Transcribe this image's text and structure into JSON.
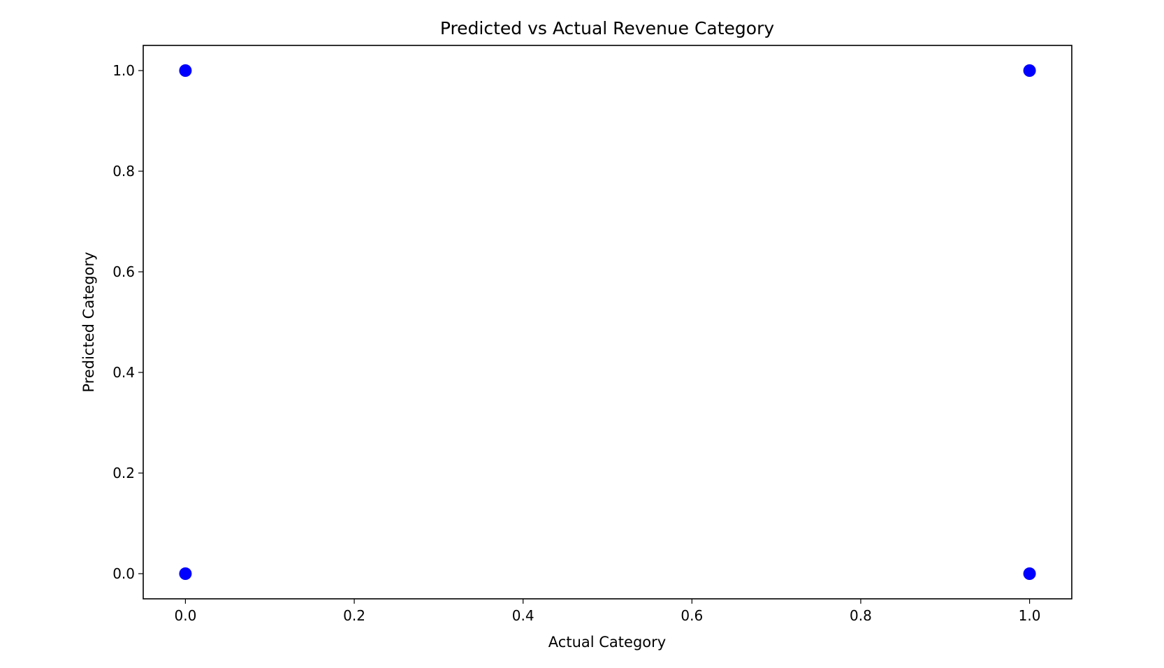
{
  "chart_data": {
    "type": "scatter",
    "title": "Predicted vs Actual Revenue Category",
    "xlabel": "Actual Category",
    "ylabel": "Predicted Category",
    "xlim": [
      -0.05,
      1.05
    ],
    "ylim": [
      -0.05,
      1.05
    ],
    "x_ticks": [
      0.0,
      0.2,
      0.4,
      0.6,
      0.8,
      1.0
    ],
    "x_tick_labels": [
      "0.0",
      "0.2",
      "0.4",
      "0.6",
      "0.8",
      "1.0"
    ],
    "y_ticks": [
      0.0,
      0.2,
      0.4,
      0.6,
      0.8,
      1.0
    ],
    "y_tick_labels": [
      "0.0",
      "0.2",
      "0.4",
      "0.6",
      "0.8",
      "1.0"
    ],
    "grid": false,
    "marker_color": "#0000ff",
    "points": [
      {
        "x": 0.0,
        "y": 1.0
      },
      {
        "x": 1.0,
        "y": 1.0
      },
      {
        "x": 0.0,
        "y": 0.0
      },
      {
        "x": 1.0,
        "y": 0.0
      }
    ]
  }
}
